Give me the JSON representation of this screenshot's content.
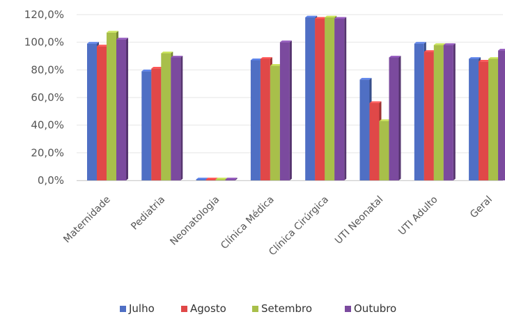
{
  "chart_data": {
    "type": "bar",
    "title": "",
    "xlabel": "",
    "ylabel": "",
    "ylim": [
      0,
      120
    ],
    "y_tick_labels": [
      "0,0%",
      "20,0%",
      "40,0%",
      "60,0%",
      "80,0%",
      "100,0%",
      "120,0%"
    ],
    "categories": [
      "Maternidade",
      "Pediatria",
      "Neonatologia",
      "Clínica Médica",
      "Clínica Cirúrgica",
      "UTI Neonatal",
      "UTI Adulto",
      "Geral"
    ],
    "series": [
      {
        "name": "Julho",
        "color": "#4f6fc4",
        "values": [
          99,
          79,
          0,
          87,
          118,
          73,
          99,
          88
        ]
      },
      {
        "name": "Agosto",
        "color": "#e04848",
        "values": [
          97,
          81,
          0,
          88,
          117,
          56,
          93,
          86
        ]
      },
      {
        "name": "Setembro",
        "color": "#a8bf4a",
        "values": [
          107,
          92,
          0,
          83,
          118,
          43,
          98,
          88
        ]
      },
      {
        "name": "Outubro",
        "color": "#7b4a9e",
        "values": [
          102,
          89,
          0,
          100,
          117,
          89,
          98,
          94
        ]
      }
    ],
    "grid": true,
    "legend_position": "bottom"
  }
}
